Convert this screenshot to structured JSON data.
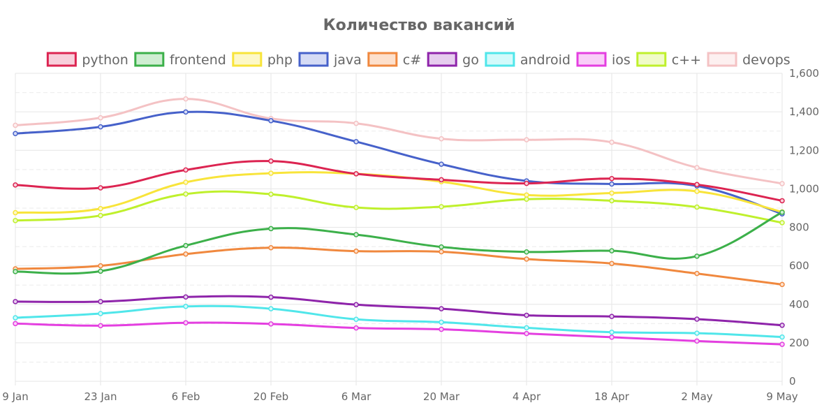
{
  "chart_data": {
    "type": "line",
    "title": "Количество вакансий",
    "categories": [
      "9 Jan",
      "23 Jan",
      "6 Feb",
      "20 Feb",
      "6 Mar",
      "20 Mar",
      "4 Apr",
      "18 Apr",
      "2 May",
      "9 May"
    ],
    "ylim": [
      0,
      1600
    ],
    "yticks": [
      "0",
      "200",
      "400",
      "600",
      "800",
      "1,000",
      "1,200",
      "1,400",
      "1,600"
    ],
    "ytick_values": [
      0,
      200,
      400,
      600,
      800,
      1000,
      1200,
      1400,
      1600
    ],
    "legend_position": "top",
    "grid": true,
    "y_axis_side": "right",
    "series": [
      {
        "name": "python",
        "color": "#dc2451",
        "fill": "#f8cfdb",
        "values": [
          1020,
          1005,
          1098,
          1144,
          1078,
          1047,
          1028,
          1053,
          1022,
          938
        ]
      },
      {
        "name": "frontend",
        "color": "#3cb04a",
        "fill": "#cfeed2",
        "values": [
          570,
          572,
          705,
          793,
          762,
          698,
          672,
          678,
          650,
          878
        ]
      },
      {
        "name": "php",
        "color": "#f8e43a",
        "fill": "#fdf8c8",
        "values": [
          876,
          897,
          1034,
          1081,
          1078,
          1037,
          968,
          978,
          987,
          880
        ]
      },
      {
        "name": "java",
        "color": "#4661ca",
        "fill": "#d5dbf5",
        "values": [
          1287,
          1322,
          1399,
          1354,
          1245,
          1128,
          1041,
          1025,
          1015,
          870
        ]
      },
      {
        "name": "c#",
        "color": "#f0883e",
        "fill": "#fde0cc",
        "values": [
          584,
          600,
          661,
          694,
          676,
          673,
          635,
          612,
          560,
          503
        ]
      },
      {
        "name": "go",
        "color": "#8e24aa",
        "fill": "#e6cdee",
        "values": [
          414,
          414,
          438,
          437,
          398,
          377,
          343,
          337,
          323,
          291
        ]
      },
      {
        "name": "android",
        "color": "#50e6ea",
        "fill": "#d3fafb",
        "values": [
          330,
          352,
          389,
          377,
          322,
          307,
          278,
          255,
          250,
          230
        ]
      },
      {
        "name": "ios",
        "color": "#e43fe0",
        "fill": "#f9cff8",
        "values": [
          300,
          289,
          304,
          298,
          277,
          270,
          248,
          229,
          209,
          192
        ]
      },
      {
        "name": "c++",
        "color": "#bff02c",
        "fill": "#f0fbc8",
        "values": [
          835,
          861,
          973,
          972,
          903,
          907,
          946,
          938,
          905,
          824
        ]
      },
      {
        "name": "devops",
        "color": "#f4c2c4",
        "fill": "#fdf0f0",
        "values": [
          1330,
          1369,
          1467,
          1365,
          1340,
          1260,
          1255,
          1242,
          1110,
          1027
        ]
      }
    ]
  }
}
